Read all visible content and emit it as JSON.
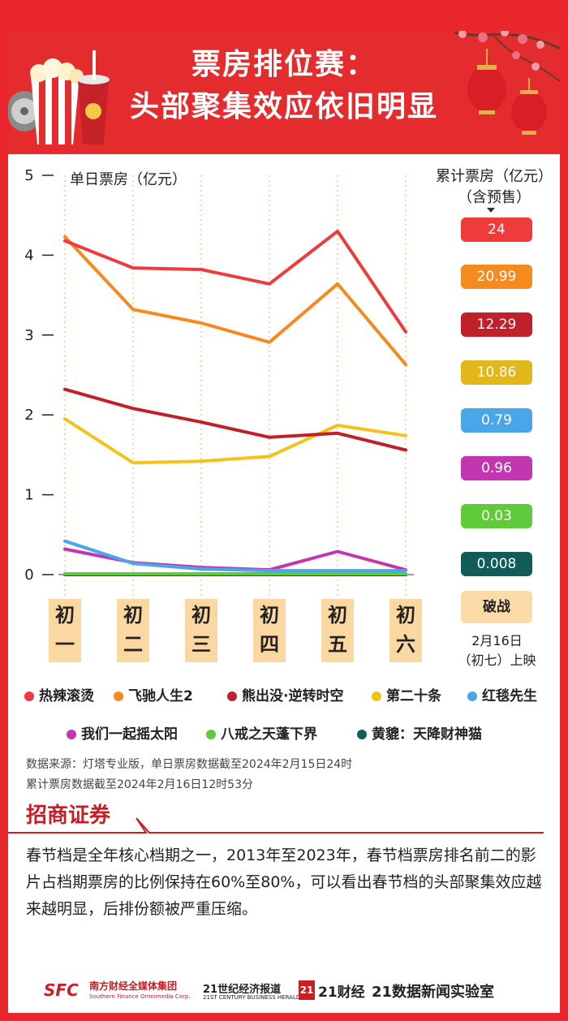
{
  "header": {
    "title_line1": "票房排位赛：",
    "title_line2": "头部聚集效应依旧明显"
  },
  "chart_data": {
    "type": "line",
    "ylabel": "单日票房（亿元）",
    "ylim": [
      0,
      5
    ],
    "y_ticks": [
      "0",
      "1",
      "2",
      "3",
      "4",
      "5"
    ],
    "categories": [
      "初一",
      "初二",
      "初三",
      "初四",
      "初五",
      "初六"
    ],
    "grid": "vertical dotted",
    "series": [
      {
        "name": "热辣滚烫",
        "color": "#ee3b3b",
        "values": [
          4.18,
          3.84,
          3.82,
          3.64,
          4.3,
          3.04
        ],
        "cumulative": "24"
      },
      {
        "name": "飞驰人生2",
        "color": "#f58a1f",
        "values": [
          4.23,
          3.32,
          3.15,
          2.91,
          3.64,
          2.63
        ],
        "cumulative": "20.99"
      },
      {
        "name": "熊出没·逆转时空",
        "color": "#c0202a",
        "values": [
          2.32,
          2.08,
          1.91,
          1.72,
          1.77,
          1.56
        ],
        "cumulative": "12.29"
      },
      {
        "name": "第二十条",
        "color": "#f5c21b",
        "values": [
          1.95,
          1.4,
          1.42,
          1.48,
          1.87,
          1.74
        ],
        "cumulative": "10.86",
        "pill_color": "#e2b71a"
      },
      {
        "name": "红毯先生",
        "color": "#49a6e9",
        "values": [
          0.42,
          0.14,
          0.07,
          0.05,
          0.05,
          0.05
        ],
        "cumulative": "0.79"
      },
      {
        "name": "我们一起摇太阳",
        "color": "#c336b2",
        "values": [
          0.32,
          0.15,
          0.09,
          0.06,
          0.29,
          0.06
        ],
        "cumulative": "0.96"
      },
      {
        "name": "八戒之天蓬下界",
        "color": "#5fcb3a",
        "values": [
          0.01,
          0.01,
          0.01,
          0.01,
          0.01,
          0.01
        ],
        "cumulative": "0.03"
      },
      {
        "name": "黄貔：天降财神猫",
        "color": "#0f5c58",
        "values": [
          0.0,
          0.0,
          0.0,
          0.0,
          0.0,
          0.0
        ],
        "cumulative": "0.008"
      }
    ],
    "cumulative_title_line1": "累计票房（亿元）",
    "cumulative_title_line2": "（含预售）",
    "pending_label": "破战",
    "release_line1": "2月16日",
    "release_line2": "（初七）上映"
  },
  "source": {
    "line1": "数据来源：灯塔专业版，单日票房数据截至2024年2月15日24时",
    "line2": "累计票房数据截至2024年2月16日12时53分"
  },
  "broker": "招商证券",
  "description": "春节档是全年核心档期之一，2013年至2023年，春节档票房排名前二的影片占档期票房的比例保持在60%至80%，可以看出春节档的头部聚集效应越来越明显，后排份额被严重压缩。",
  "footer": {
    "sfc_logo": "SFC",
    "sfc_name": "南方财经全媒体集团",
    "sfc_sub": "Southern Finance Omnimedia Corp.",
    "herald_name": "21世纪经济报道",
    "herald_sub": "21ST CENTURY BUSINESS HERALD",
    "cj_badge": "21",
    "cj_name": "21财经",
    "lab": "21数据新闻实验室"
  }
}
